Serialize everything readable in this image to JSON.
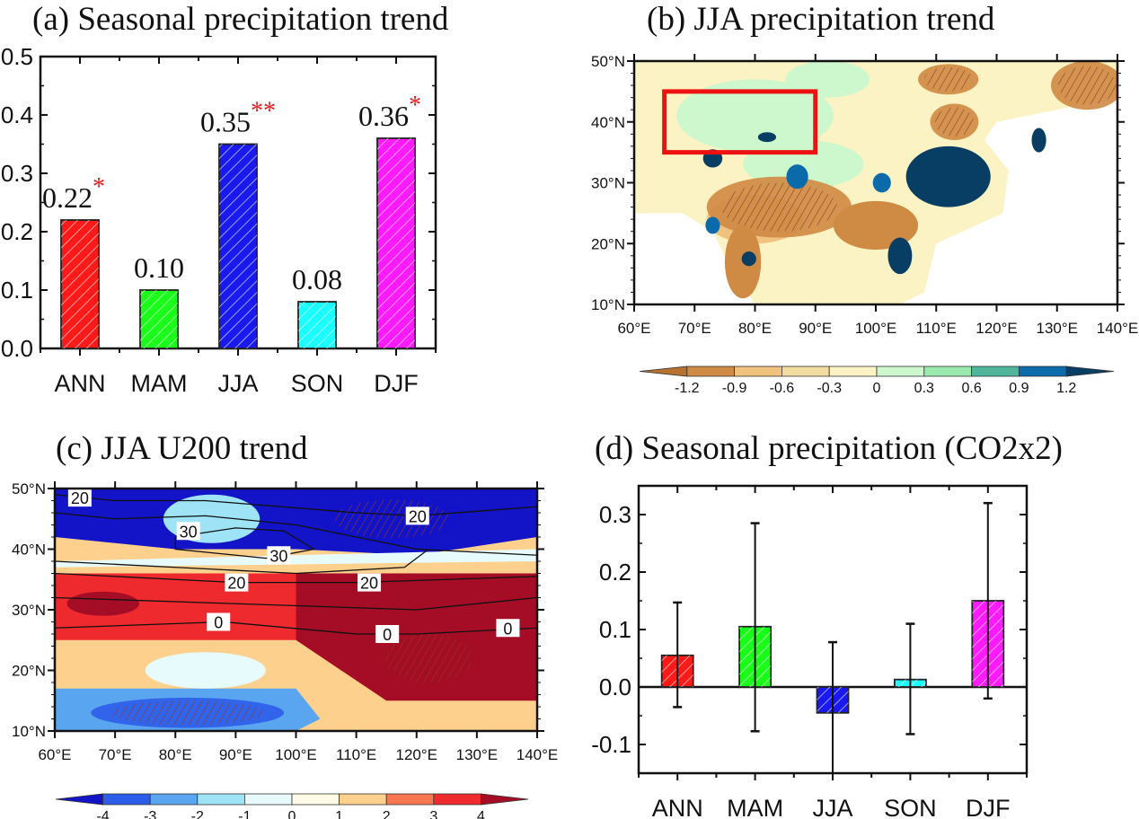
{
  "chart_data": [
    {
      "id": "a",
      "type": "bar",
      "title": "(a) Seasonal  precipitation trend",
      "categories": [
        "ANN",
        "MAM",
        "JJA",
        "SON",
        "DJF"
      ],
      "values": [
        0.22,
        0.1,
        0.35,
        0.08,
        0.36
      ],
      "value_labels": [
        "0.22",
        "0.10",
        "0.35",
        "0.08",
        "0.36"
      ],
      "significance": [
        "*",
        "",
        "**",
        "",
        "*"
      ],
      "colors": [
        "#ff1a1a",
        "#1aff1a",
        "#1a1aee",
        "#1affff",
        "#ff1aff"
      ],
      "hatch": "diagonal",
      "ylim": [
        0.0,
        0.5
      ],
      "yticks": [
        "0.0",
        "0.1",
        "0.2",
        "0.3",
        "0.4",
        "0.5"
      ],
      "xlabel": "",
      "ylabel": "",
      "grid": false
    },
    {
      "id": "b",
      "type": "heatmap",
      "title": "(b) JJA precipitation trend",
      "xticks": [
        "60°E",
        "70°E",
        "80°E",
        "90°E",
        "100°E",
        "110°E",
        "120°E",
        "130°E",
        "140°E"
      ],
      "yticks": [
        "10°N",
        "20°N",
        "30°N",
        "40°N",
        "50°N"
      ],
      "xlim": [
        60,
        140
      ],
      "ylim": [
        10,
        50
      ],
      "highlight_box": {
        "lon": [
          65,
          90
        ],
        "lat": [
          35,
          45
        ],
        "color": "#ee1111"
      },
      "colorbar": {
        "levels": [
          "-1.2",
          "-0.9",
          "-0.6",
          "-0.3",
          "0",
          "0.3",
          "0.6",
          "0.9",
          "1.2"
        ],
        "colors": [
          "#b8722f",
          "#cf8a44",
          "#f0c27e",
          "#f3dc9f",
          "#fcf3c4",
          "#cdf7cd",
          "#9aeaae",
          "#4fb59b",
          "#0b6aa9",
          "#083e63"
        ]
      }
    },
    {
      "id": "c",
      "type": "heatmap",
      "title": "(c) JJA U200 trend",
      "xticks": [
        "60°E",
        "70°E",
        "80°E",
        "90°E",
        "100°E",
        "110°E",
        "120°E",
        "130°E",
        "140°E"
      ],
      "yticks": [
        "10°N",
        "20°N",
        "30°N",
        "40°N",
        "50°N"
      ],
      "xlim": [
        60,
        140
      ],
      "ylim": [
        10,
        50
      ],
      "contour_labels": [
        "20",
        "20",
        "30",
        "30",
        "20",
        "20",
        "0",
        "0",
        "0"
      ],
      "colorbar": {
        "levels": [
          "-4",
          "-3",
          "-2",
          "-1",
          "0",
          "1",
          "2",
          "3",
          "4"
        ],
        "colors": [
          "#1313c8",
          "#2c5de9",
          "#5aa5f0",
          "#9ee3f6",
          "#e7fbfd",
          "#fffbe6",
          "#fdd18d",
          "#f9764f",
          "#ef2a2f",
          "#a50d26"
        ]
      }
    },
    {
      "id": "d",
      "type": "bar",
      "title": "(d) Seasonal precipitation (CO2x2)",
      "categories": [
        "ANN",
        "MAM",
        "JJA",
        "SON",
        "DJF"
      ],
      "values": [
        0.055,
        0.105,
        -0.045,
        0.013,
        0.15
      ],
      "error_low": [
        -0.035,
        -0.077,
        -0.15,
        -0.082,
        -0.02
      ],
      "error_high": [
        0.147,
        0.285,
        0.078,
        0.11,
        0.32
      ],
      "colors": [
        "#ff1a1a",
        "#1aff1a",
        "#1a1aee",
        "#1affff",
        "#ff1aff"
      ],
      "hatch": "diagonal",
      "ylim": [
        -0.15,
        0.35
      ],
      "yticks": [
        "-0.1",
        "0.0",
        "0.1",
        "0.2",
        "0.3"
      ],
      "xlabel": "",
      "ylabel": "",
      "grid": false
    }
  ]
}
